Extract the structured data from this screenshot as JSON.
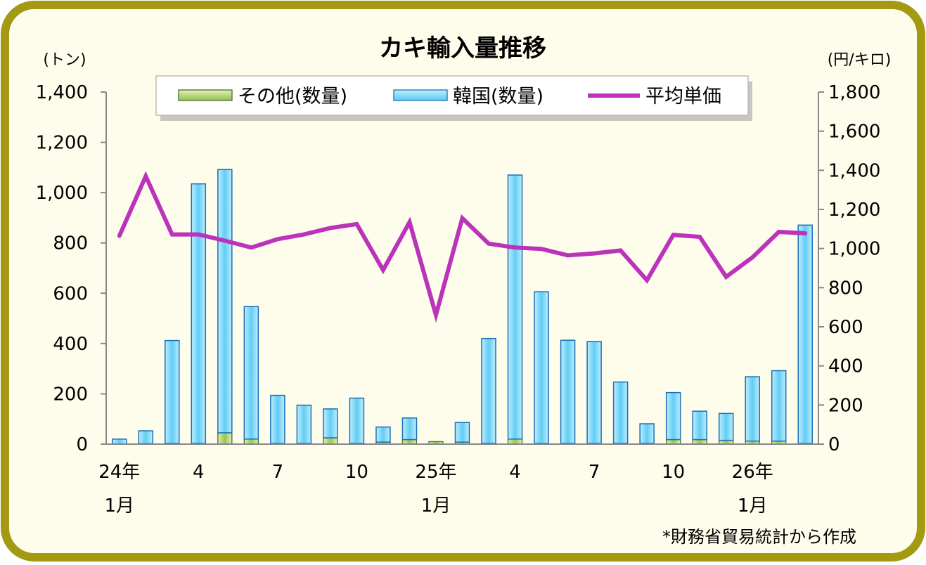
{
  "chart_data": {
    "type": "bar",
    "title": "カキ輸入量推移",
    "left_unit": "(トン)",
    "right_unit": "(円/キロ)",
    "source_note": "*財務省貿易統計から作成",
    "left_axis": {
      "min": 0,
      "max": 1400,
      "ticks": [
        "0",
        "200",
        "400",
        "600",
        "800",
        "1,000",
        "1,200",
        "1,400"
      ]
    },
    "right_axis": {
      "min": 0,
      "max": 1800,
      "ticks": [
        "0",
        "200",
        "400",
        "600",
        "800",
        "1,000",
        "1,200",
        "1,400",
        "1,600",
        "1,800"
      ]
    },
    "x_labels": [
      {
        "index": 0,
        "line1": "24年",
        "line2": "1月"
      },
      {
        "index": 3,
        "line1": "4",
        "line2": ""
      },
      {
        "index": 6,
        "line1": "7",
        "line2": ""
      },
      {
        "index": 9,
        "line1": "10",
        "line2": ""
      },
      {
        "index": 12,
        "line1": "25年",
        "line2": "1月"
      },
      {
        "index": 15,
        "line1": "4",
        "line2": ""
      },
      {
        "index": 18,
        "line1": "7",
        "line2": ""
      },
      {
        "index": 21,
        "line1": "10",
        "line2": ""
      },
      {
        "index": 24,
        "line1": "26年",
        "line2": "1月"
      }
    ],
    "series": [
      {
        "name": "その他(数量)",
        "kind": "bar",
        "axis": "left",
        "color": "#9cc35a",
        "values": [
          1,
          2,
          3,
          3,
          45,
          20,
          3,
          3,
          25,
          3,
          8,
          18,
          10,
          8,
          3,
          20,
          3,
          3,
          3,
          3,
          3,
          18,
          18,
          15,
          12,
          12,
          3
        ]
      },
      {
        "name": "韓国(数量)",
        "kind": "bar",
        "axis": "left",
        "color": "#66ccf2",
        "values": [
          19,
          51,
          409,
          1032,
          1047,
          527,
          191,
          152,
          115,
          180,
          60,
          86,
          0,
          78,
          417,
          1050,
          603,
          410,
          405,
          244,
          78,
          187,
          113,
          107,
          256,
          280,
          868
        ]
      },
      {
        "name": "平均単価",
        "kind": "line",
        "axis": "right",
        "color": "#bb33bb",
        "values": [
          1065,
          1370,
          1072,
          1072,
          1040,
          1005,
          1048,
          1072,
          1105,
          1125,
          890,
          1135,
          660,
          1155,
          1025,
          1005,
          998,
          965,
          975,
          990,
          838,
          1070,
          1060,
          855,
          955,
          1085,
          1078
        ]
      }
    ],
    "legend_position": "top"
  }
}
